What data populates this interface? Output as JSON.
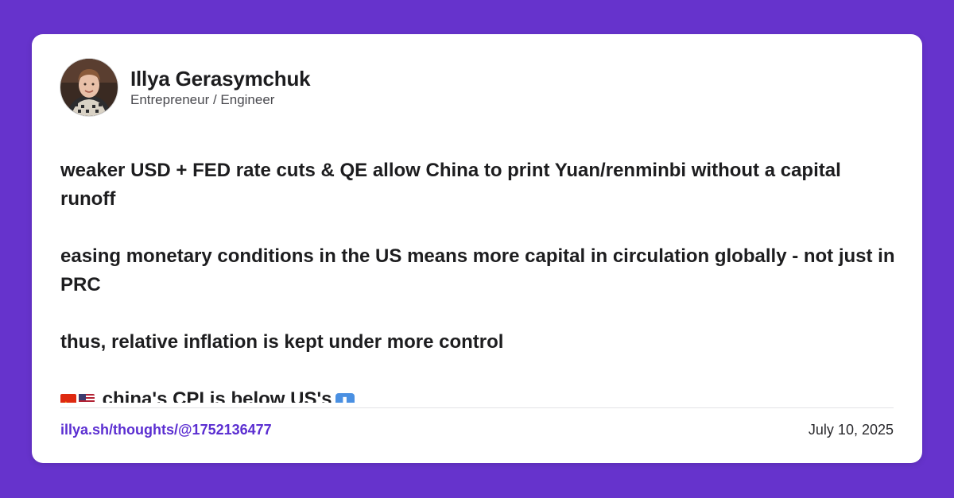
{
  "author": {
    "name": "Illya Gerasymchuk",
    "title": "Entrepreneur / Engineer"
  },
  "post": {
    "paragraphs": [
      "weaker USD + FED rate cuts & QE allow China to print Yuan/renminbi without a capital runoff",
      "easing monetary conditions in the US means more capital in circulation globally - not just in PRC",
      "thus, relative inflation is kept under more control"
    ],
    "partial_line": "china's CPI is below US's",
    "partial_line_icons": [
      "china-flag-icon",
      "us-flag-icon",
      "down-arrow-icon"
    ]
  },
  "footer": {
    "link": "illya.sh/thoughts/@1752136477",
    "date": "July 10, 2025"
  },
  "colors": {
    "background": "#6633cc",
    "card": "#ffffff",
    "link": "#5b2ed1",
    "text": "#1d1d1f"
  }
}
